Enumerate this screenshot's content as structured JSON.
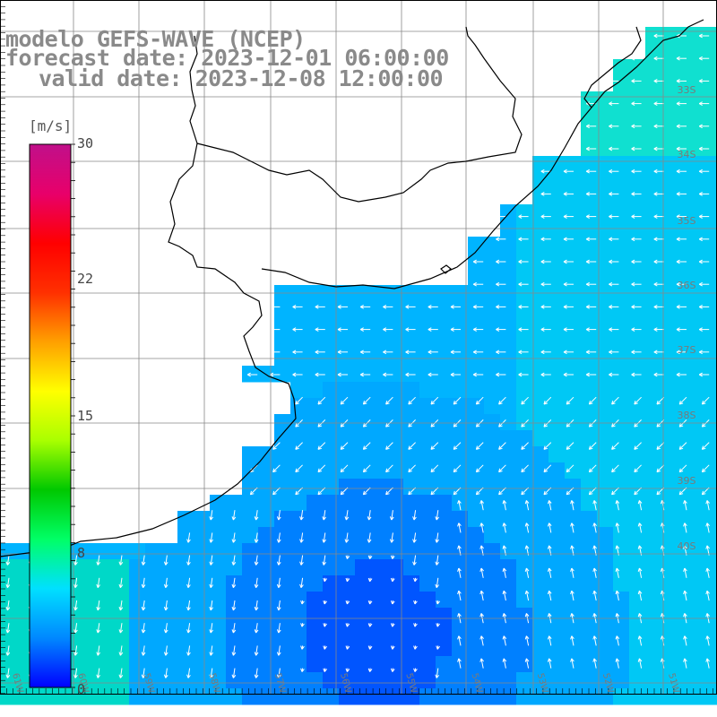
{
  "title": {
    "line1": "modelo GEFS-WAVE (NCEP)",
    "line2": "forecast date: 2023-12-01 06:00:00",
    "line3": "valid date: 2023-12-08 12:00:00"
  },
  "colorbar": {
    "unit": "[m/s]",
    "min": 0,
    "max": 30,
    "labels": [
      "30",
      "22",
      "15",
      "8",
      "0"
    ],
    "label_values": [
      30,
      22,
      15,
      8,
      0
    ],
    "colors": [
      "#0000ff",
      "#0088ff",
      "#00e0ff",
      "#00ff66",
      "#00c800",
      "#aaff00",
      "#ffff00",
      "#ffa000",
      "#ff3000",
      "#ff0000",
      "#e8006a",
      "#c0108a"
    ]
  },
  "lat_labels": [
    "33S",
    "34S",
    "35S",
    "36S",
    "37S",
    "38S",
    "39S",
    "40S"
  ],
  "lon_labels": [
    "61W",
    "60W",
    "59W",
    "58W",
    "57W",
    "56W",
    "55W",
    "54W",
    "53W",
    "52W",
    "51W"
  ],
  "colors": {
    "land": "#ffffff",
    "coast": "#000000",
    "grid": "#888888",
    "arrow": "#ffffff",
    "title": "#8a8a8a"
  }
}
